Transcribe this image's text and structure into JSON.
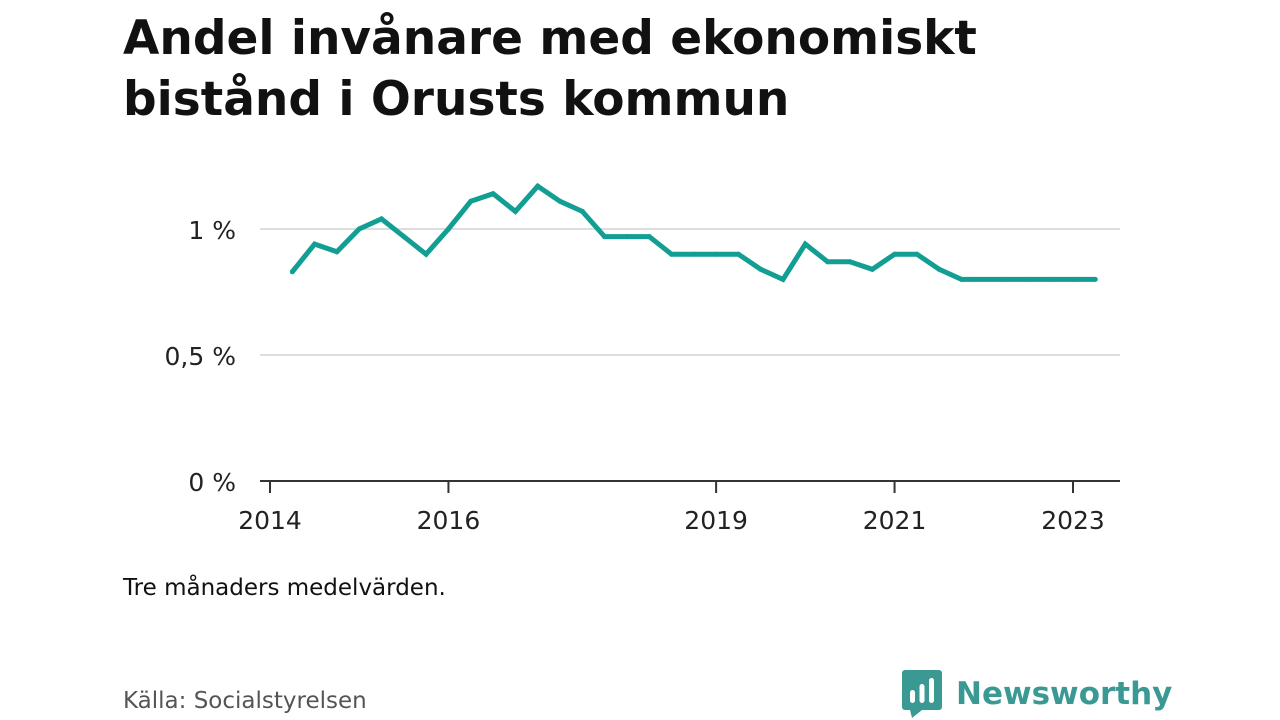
{
  "title": "Andel invånare med ekonomiskt bistånd i Orusts kommun",
  "note": "Tre månaders medelvärden.",
  "source": "Källa: Socialstyrelsen",
  "brand": {
    "name": "Newsworthy",
    "icon": "bar-chart-speech-bubble-icon",
    "color": "#3a9a93"
  },
  "colors": {
    "line": "#139e94",
    "grid": "#dddddd",
    "axis": "#333333"
  },
  "chart_data": {
    "type": "line",
    "title": "Andel invånare med ekonomiskt bistånd i Orusts kommun",
    "xlabel": "",
    "ylabel": "",
    "x_ticks": [
      "2014",
      "2016",
      "2019",
      "2021",
      "2023"
    ],
    "y_ticks": [
      "0 %",
      "0,5 %",
      "1 %"
    ],
    "ylim": [
      0,
      1.2
    ],
    "xlim": [
      "2014-01",
      "2023-10"
    ],
    "grid": true,
    "series": [
      {
        "x": [
          "2014-04",
          "2014-07",
          "2014-10",
          "2015-01",
          "2015-04",
          "2015-07",
          "2015-10",
          "2016-01",
          "2016-04",
          "2016-07",
          "2016-10",
          "2017-01",
          "2017-04",
          "2017-07",
          "2017-10",
          "2018-01",
          "2018-04",
          "2018-07",
          "2018-10",
          "2019-01",
          "2019-04",
          "2019-07",
          "2019-10",
          "2020-01",
          "2020-04",
          "2020-07",
          "2020-10",
          "2021-01",
          "2021-04",
          "2021-07",
          "2021-10",
          "2022-01",
          "2022-04",
          "2022-07",
          "2022-10",
          "2023-01",
          "2023-04"
        ],
        "values": [
          0.83,
          0.94,
          0.91,
          1.0,
          1.04,
          0.97,
          0.9,
          1.0,
          1.11,
          1.14,
          1.07,
          1.17,
          1.11,
          1.07,
          0.97,
          0.97,
          0.97,
          0.9,
          0.9,
          0.9,
          0.9,
          0.84,
          0.8,
          0.94,
          0.87,
          0.87,
          0.84,
          0.9,
          0.9,
          0.84,
          0.8,
          0.8,
          0.8,
          0.8,
          0.8,
          0.8,
          0.8
        ]
      }
    ]
  }
}
